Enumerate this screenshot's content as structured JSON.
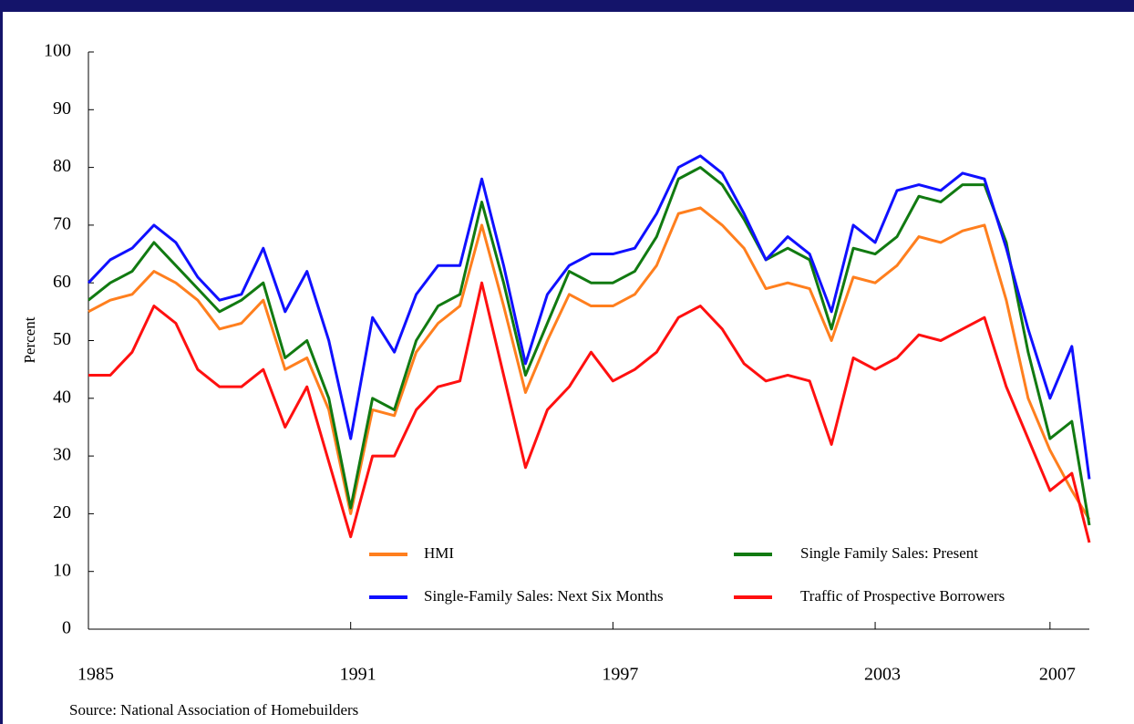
{
  "chart_data": {
    "type": "line",
    "ylabel": "Percent",
    "source": "Source: National Association of Homebuilders",
    "x": [
      1985,
      1985.5,
      1986,
      1986.5,
      1987,
      1987.5,
      1988,
      1988.5,
      1989,
      1989.5,
      1990,
      1990.5,
      1991,
      1991.5,
      1992,
      1992.5,
      1993,
      1993.5,
      1994,
      1994.5,
      1995,
      1995.5,
      1996,
      1996.5,
      1997,
      1997.5,
      1998,
      1998.5,
      1999,
      1999.5,
      2000,
      2000.5,
      2001,
      2001.5,
      2002,
      2002.5,
      2003,
      2003.5,
      2004,
      2004.5,
      2005,
      2005.5,
      2006,
      2006.5,
      2007,
      2007.5,
      2007.9
    ],
    "series": [
      {
        "name": "HMI",
        "color": "#ff7f1e",
        "values": [
          55,
          57,
          58,
          62,
          60,
          57,
          52,
          53,
          57,
          45,
          47,
          38,
          20,
          38,
          37,
          48,
          53,
          56,
          70,
          56,
          41,
          50,
          58,
          56,
          56,
          58,
          63,
          72,
          73,
          70,
          66,
          59,
          60,
          59,
          50,
          61,
          60,
          63,
          68,
          67,
          69,
          70,
          57,
          40,
          31,
          24,
          19
        ]
      },
      {
        "name": "Single Family Sales: Present",
        "color": "#117a11",
        "values": [
          57,
          60,
          62,
          67,
          63,
          59,
          55,
          57,
          60,
          47,
          50,
          40,
          21,
          40,
          38,
          50,
          56,
          58,
          74,
          60,
          44,
          53,
          62,
          60,
          60,
          62,
          68,
          78,
          80,
          77,
          71,
          64,
          66,
          64,
          52,
          66,
          65,
          68,
          75,
          74,
          77,
          77,
          67,
          48,
          33,
          36,
          18
        ]
      },
      {
        "name": "Single-Family Sales: Next Six Months",
        "color": "#1010ff",
        "values": [
          60,
          64,
          66,
          70,
          67,
          61,
          57,
          58,
          66,
          55,
          62,
          50,
          33,
          54,
          48,
          58,
          63,
          63,
          78,
          63,
          46,
          58,
          63,
          65,
          65,
          66,
          72,
          80,
          82,
          79,
          72,
          64,
          68,
          65,
          55,
          70,
          67,
          76,
          77,
          76,
          79,
          78,
          66,
          52,
          40,
          49,
          26
        ]
      },
      {
        "name": "Traffic of Prospective Borrowers",
        "color": "#ff1010",
        "values": [
          44,
          44,
          48,
          56,
          53,
          45,
          42,
          42,
          45,
          35,
          42,
          29,
          16,
          30,
          30,
          38,
          42,
          43,
          60,
          44,
          28,
          38,
          42,
          48,
          43,
          45,
          48,
          54,
          56,
          52,
          46,
          43,
          44,
          43,
          32,
          47,
          45,
          47,
          51,
          50,
          52,
          54,
          42,
          33,
          24,
          27,
          15
        ]
      }
    ],
    "xlim": [
      1985,
      2007.9
    ],
    "xticks": [
      1985,
      1991,
      1997,
      2003,
      2007
    ],
    "ylim": [
      0,
      100
    ],
    "yticks": [
      0,
      10,
      20,
      30,
      40,
      50,
      60,
      70,
      80,
      90,
      100
    ],
    "grid": false
  }
}
